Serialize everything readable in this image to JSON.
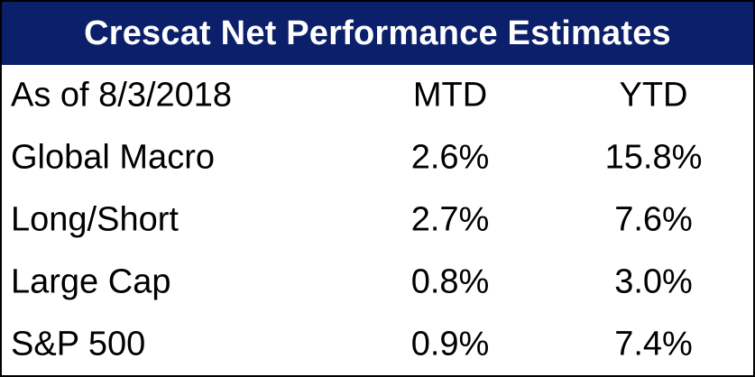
{
  "title": "Crescat Net Performance Estimates",
  "header": {
    "label": "As of 8/3/2018",
    "mtd": "MTD",
    "ytd": "YTD"
  },
  "rows": [
    {
      "label": "Global Macro",
      "mtd": "2.6%",
      "ytd": "15.8%"
    },
    {
      "label": "Long/Short",
      "mtd": "2.7%",
      "ytd": "7.6%"
    },
    {
      "label": "Large Cap",
      "mtd": "0.8%",
      "ytd": "3.0%"
    },
    {
      "label": "S&P 500",
      "mtd": "0.9%",
      "ytd": "7.4%"
    }
  ],
  "colors": {
    "title_bg": "#0b1f6b",
    "title_text": "#ffffff"
  }
}
